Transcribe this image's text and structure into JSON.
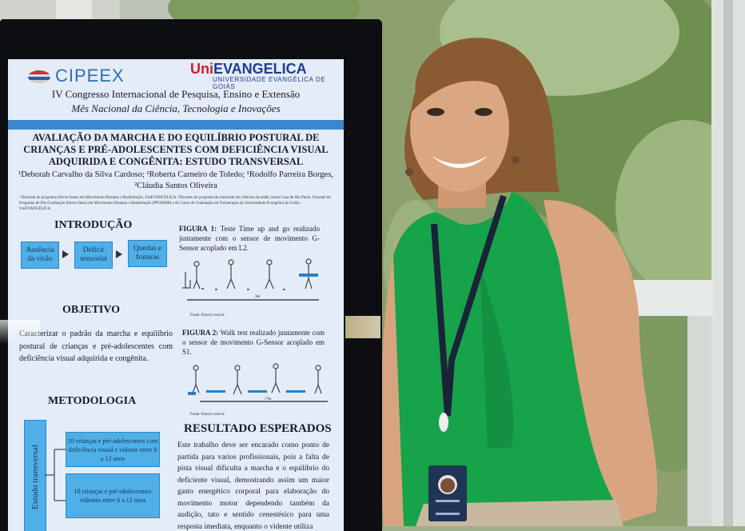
{
  "poster": {
    "logo_left": "CIPEEX",
    "logo_right_prefix": "Uni",
    "logo_right_main": "EVANGELICA",
    "logo_right_sub": "UNIVERSIDADE EVANGÉLICA DE GOIÁS",
    "congress": "IV Congresso Internacional de Pesquisa, Ensino e Extensão",
    "month": "Mês Nacional da Ciência, Tecnologia e Inovações",
    "title": "AVALIAÇÃO DA MARCHA E DO EQUILÍBRIO POSTURAL DE CRIANÇAS E PRÉ-ADOLESCENTES COM DEFICIÊNCIA VISUAL ADQUIRIDA E CONGÊNITA: ESTUDO TRANSVERSAL",
    "authors": "¹Deborah Carvalho da Silva Cardoso; ¹Roberta Carneiro de Toledo; ¹Rodolfo Parreira Borges, ²Cláudia Santos Oliveira",
    "affiliations": "¹ Discente do programa Stricto Sensu em Movimento Humano e Reabilitação, UniEVANGÉLICA. ²Docente do programa de mestrado em ciências da saúde, Santa Casa de São Paulo. Docente do Programa de Pós-Graduação Stricto Sensu em Movimento Humano e Reabilitação (PPGMHR) e do Curso de Graduação em Fisioterapia da Universidade Evangélica de Goiás – UniEVANGÉLICA",
    "intro": {
      "heading": "INTRODUÇÃO",
      "steps": [
        "Ausência da visão",
        "Déficit sensorial",
        "Quedas e fraturas"
      ]
    },
    "figure1": {
      "caption_label": "FIGURA 1:",
      "caption": "Teste Time up and go realizado juntamente com o sensor de movimento G-Sensor acoplado em L2.",
      "distance": "3m",
      "source": "Fonte: Kinect.com.br."
    },
    "objective": {
      "heading": "OBJETIVO",
      "text": "Caracterizar o padrão da marcha e equilíbrio postural de crianças e pré-adolescentes com deficiência visual adquirida e congênita."
    },
    "figure2": {
      "caption_label": "FIGURA 2:",
      "caption": "Walk test realizado juntamente com o sensor de movimento G-Sensor acoplado em S1.",
      "distance": ">7m",
      "source": "Fonte: Kinect.com.br."
    },
    "methodology": {
      "heading": "METODOLOGIA",
      "study_label": "Estudo transversal",
      "groups": [
        "10 crianças e pré-adolescentes com deficiência visual e vidente entre 6 a 12 anos",
        "10 crianças e pré-adolescentes videntes entre 6 a 12 anos"
      ]
    },
    "results": {
      "heading": "RESULTADO ESPERADOS",
      "text": "Este trabalho deve ser encarado como ponto de partida para varios profissionais, pois a falta de pista visual dificulta a marcha e o equilíbrio do deficiente visual, demostrando assim um maior gasto energético corporal para elaboração do movimento motor dependendo também da audição, tato e sentido cenestésico para uma resposta imediata, enquanto o vidente utiliza"
    }
  },
  "colors": {
    "poster_blue": "#3b86d0",
    "box_blue": "#4fb0e8",
    "shirt_green": "#17a34a",
    "lanyard": "#1b2338"
  }
}
